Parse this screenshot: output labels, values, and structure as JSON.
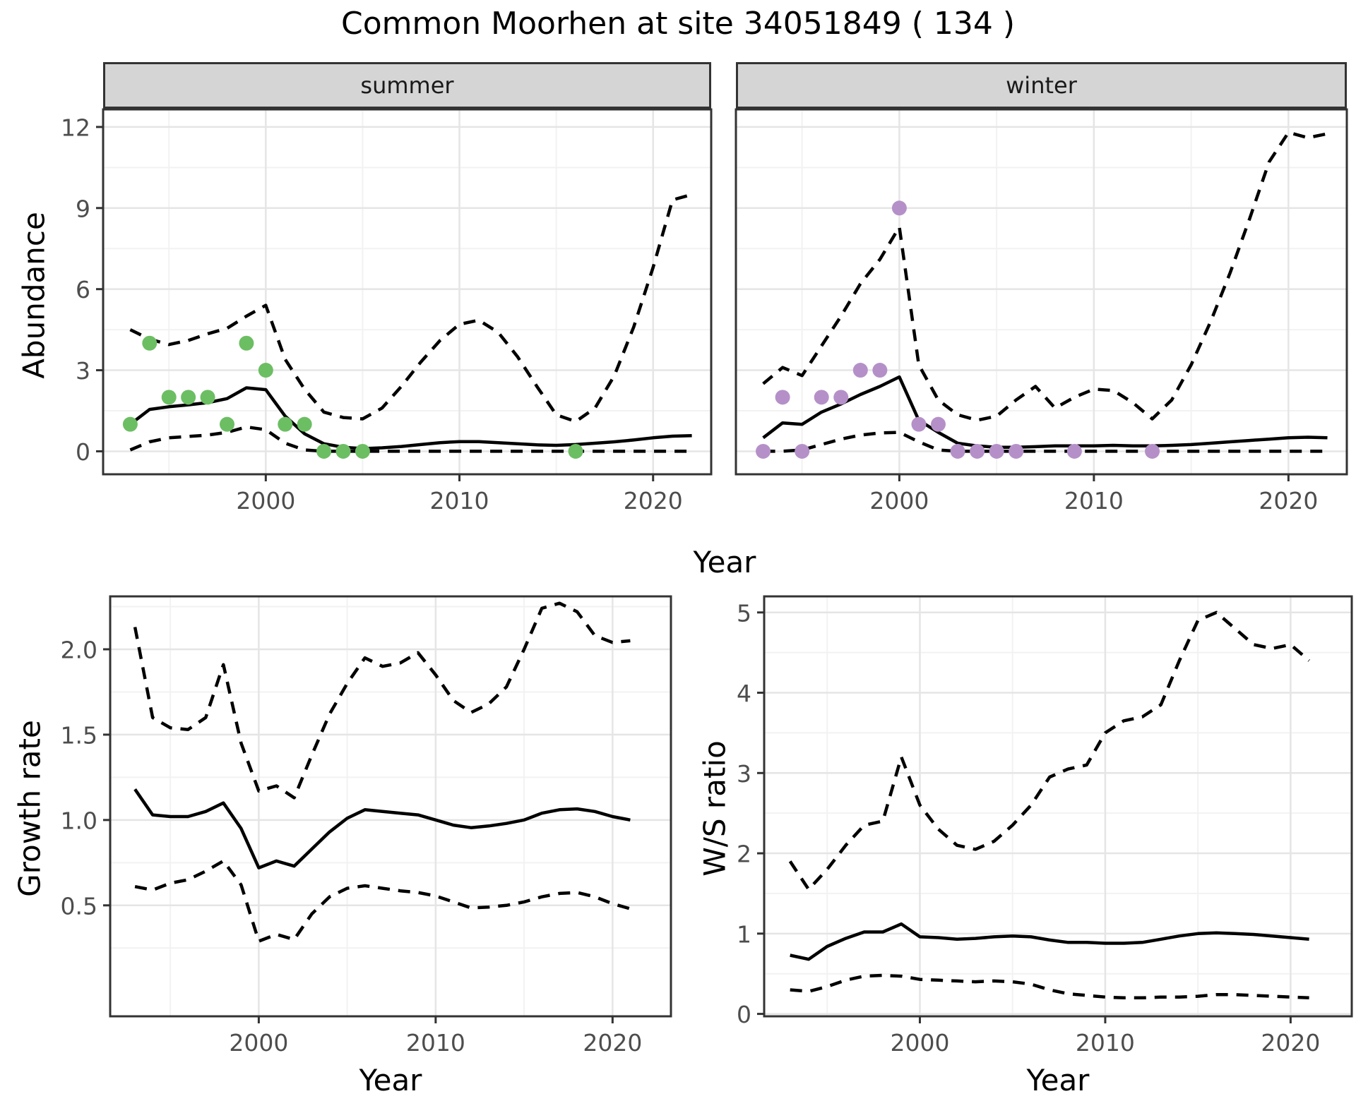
{
  "title": "Common Moorhen at site 34051849 ( 134 )",
  "axis_labels": {
    "abundance": "Abundance",
    "year": "Year",
    "growth_rate": "Growth rate",
    "ws_ratio": "W/S ratio"
  },
  "colors": {
    "summer_points": "#6cbe63",
    "winter_points": "#b590c8",
    "line": "#000000",
    "grid_major": "#e5e5e5",
    "grid_minor": "#f2f2f2",
    "panel_border": "#333333",
    "strip_bg": "#d5d5d5",
    "tick_text": "#4d4d4d"
  },
  "chart_data": [
    {
      "id": "abundance-summer",
      "type": "line",
      "facet_label": "summer",
      "xlabel": "Year",
      "ylabel": "Abundance",
      "xlim": [
        1991.6,
        2023.0
      ],
      "ylim": [
        -0.85,
        12.65
      ],
      "xticks": [
        2000,
        2010,
        2020
      ],
      "xticklabels": [
        "2000",
        "2010",
        "2020"
      ],
      "xminor": [
        1995,
        2005,
        2015
      ],
      "yticks": [
        0,
        3,
        6,
        9,
        12
      ],
      "yticklabels": [
        "0",
        "3",
        "6",
        "9",
        "12"
      ],
      "yminor": [
        1.5,
        4.5,
        7.5,
        10.5
      ],
      "show_yticks": true,
      "series": [
        {
          "name": "upper-credible",
          "style": "dashed",
          "x": [
            1993,
            1994,
            1995,
            1996,
            1997,
            1998,
            1999,
            2000,
            2001,
            2002,
            2003,
            2004,
            2005,
            2006,
            2007,
            2008,
            2009,
            2010,
            2011,
            2012,
            2013,
            2014,
            2015,
            2016,
            2017,
            2018,
            2019,
            2020,
            2021,
            2022
          ],
          "y": [
            4.5,
            4.15,
            3.95,
            4.1,
            4.35,
            4.55,
            5.0,
            5.4,
            3.4,
            2.3,
            1.45,
            1.25,
            1.2,
            1.6,
            2.4,
            3.3,
            4.1,
            4.7,
            4.85,
            4.4,
            3.5,
            2.4,
            1.35,
            1.1,
            1.6,
            2.8,
            4.6,
            6.8,
            9.3,
            9.5
          ]
        },
        {
          "name": "lower-credible",
          "style": "dashed",
          "x": [
            1993,
            1994,
            1995,
            1996,
            1997,
            1998,
            1999,
            2000,
            2001,
            2002,
            2003,
            2004,
            2005,
            2006,
            2007,
            2008,
            2009,
            2010,
            2011,
            2012,
            2013,
            2014,
            2015,
            2016,
            2017,
            2018,
            2019,
            2020,
            2021,
            2022
          ],
          "y": [
            0.05,
            0.35,
            0.5,
            0.55,
            0.6,
            0.7,
            0.9,
            0.8,
            0.3,
            0.05,
            0,
            0,
            0,
            0,
            0,
            0,
            0,
            0,
            0,
            0,
            0,
            0,
            0,
            0,
            0,
            0,
            0,
            0,
            0,
            0
          ]
        },
        {
          "name": "estimate",
          "style": "solid",
          "x": [
            1993,
            1994,
            1995,
            1996,
            1997,
            1998,
            1999,
            2000,
            2001,
            2002,
            2003,
            2004,
            2005,
            2006,
            2007,
            2008,
            2009,
            2010,
            2011,
            2012,
            2013,
            2014,
            2015,
            2016,
            2017,
            2018,
            2019,
            2020,
            2021,
            2022
          ],
          "y": [
            1.0,
            1.55,
            1.65,
            1.72,
            1.8,
            1.95,
            2.35,
            2.28,
            1.3,
            0.65,
            0.28,
            0.15,
            0.1,
            0.13,
            0.18,
            0.25,
            0.32,
            0.36,
            0.36,
            0.32,
            0.28,
            0.24,
            0.22,
            0.25,
            0.3,
            0.35,
            0.42,
            0.5,
            0.56,
            0.58
          ]
        },
        {
          "name": "observed-counts",
          "style": "points",
          "color": "#6cbe63",
          "x": [
            1993,
            1994,
            1995,
            1996,
            1997,
            1998,
            1999,
            2000,
            2001,
            2002,
            2003,
            2004,
            2005,
            2016
          ],
          "y": [
            1,
            4,
            2,
            2,
            2,
            1,
            4,
            3,
            1,
            1,
            0,
            0,
            0,
            0
          ]
        }
      ]
    },
    {
      "id": "abundance-winter",
      "type": "line",
      "facet_label": "winter",
      "xlabel": "Year",
      "ylabel": "Abundance",
      "xlim": [
        1991.6,
        2023.0
      ],
      "ylim": [
        -0.85,
        12.65
      ],
      "xticks": [
        2000,
        2010,
        2020
      ],
      "xticklabels": [
        "2000",
        "2010",
        "2020"
      ],
      "xminor": [
        1995,
        2005,
        2015
      ],
      "yticks": [
        0,
        3,
        6,
        9,
        12
      ],
      "yticklabels": [
        "0",
        "3",
        "6",
        "9",
        "12"
      ],
      "yminor": [
        1.5,
        4.5,
        7.5,
        10.5
      ],
      "show_yticks": false,
      "series": [
        {
          "name": "upper-credible",
          "style": "dashed",
          "x": [
            1993,
            1994,
            1995,
            1996,
            1997,
            1998,
            1999,
            2000,
            2001,
            2002,
            2003,
            2004,
            2005,
            2006,
            2007,
            2008,
            2009,
            2010,
            2011,
            2012,
            2013,
            2014,
            2015,
            2016,
            2017,
            2018,
            2019,
            2020,
            2021,
            2022
          ],
          "y": [
            2.5,
            3.1,
            2.8,
            3.9,
            5.0,
            6.2,
            7.1,
            8.3,
            3.2,
            1.9,
            1.35,
            1.15,
            1.3,
            1.9,
            2.4,
            1.6,
            2.0,
            2.3,
            2.25,
            1.8,
            1.2,
            1.9,
            3.2,
            4.8,
            6.6,
            8.6,
            10.7,
            11.8,
            11.6,
            11.75
          ]
        },
        {
          "name": "lower-credible",
          "style": "dashed",
          "x": [
            1993,
            1994,
            1995,
            1996,
            1997,
            1998,
            1999,
            2000,
            2001,
            2002,
            2003,
            2004,
            2005,
            2006,
            2007,
            2008,
            2009,
            2010,
            2011,
            2012,
            2013,
            2014,
            2015,
            2016,
            2017,
            2018,
            2019,
            2020,
            2021,
            2022
          ],
          "y": [
            0,
            0,
            0.05,
            0.25,
            0.45,
            0.6,
            0.68,
            0.7,
            0.35,
            0.05,
            0,
            0,
            0,
            0,
            0,
            0,
            0,
            0,
            0,
            0,
            0,
            0,
            0,
            0,
            0,
            0,
            0,
            0,
            0,
            0
          ]
        },
        {
          "name": "estimate",
          "style": "solid",
          "x": [
            1993,
            1994,
            1995,
            1996,
            1997,
            1998,
            1999,
            2000,
            2001,
            2002,
            2003,
            2004,
            2005,
            2006,
            2007,
            2008,
            2009,
            2010,
            2011,
            2012,
            2013,
            2014,
            2015,
            2016,
            2017,
            2018,
            2019,
            2020,
            2021,
            2022
          ],
          "y": [
            0.5,
            1.05,
            1.0,
            1.45,
            1.75,
            2.1,
            2.4,
            2.75,
            1.15,
            0.7,
            0.3,
            0.2,
            0.15,
            0.15,
            0.17,
            0.2,
            0.2,
            0.2,
            0.22,
            0.2,
            0.2,
            0.22,
            0.25,
            0.3,
            0.35,
            0.4,
            0.45,
            0.5,
            0.52,
            0.5
          ]
        },
        {
          "name": "observed-counts",
          "style": "points",
          "color": "#b590c8",
          "x": [
            1993,
            1994,
            1995,
            1996,
            1997,
            1998,
            1999,
            2000,
            2001,
            2002,
            2003,
            2004,
            2005,
            2006,
            2009,
            2013
          ],
          "y": [
            0,
            2,
            0,
            2,
            2,
            3,
            3,
            9,
            1,
            1,
            0,
            0,
            0,
            0,
            0,
            0
          ]
        }
      ]
    },
    {
      "id": "growth-rate",
      "type": "line",
      "facet_label": "",
      "xlabel": "Year",
      "ylabel": "Growth rate",
      "xlim": [
        1991.6,
        2023.3
      ],
      "ylim": [
        -0.15,
        2.31
      ],
      "xticks": [
        2000,
        2010,
        2020
      ],
      "xticklabels": [
        "2000",
        "2010",
        "2020"
      ],
      "xminor": [
        1995,
        2005,
        2015
      ],
      "yticks": [
        0.5,
        1.0,
        1.5,
        2.0
      ],
      "yticklabels": [
        "0.5",
        "1.0",
        "1.5",
        "2.0"
      ],
      "yminor": [
        0.25,
        0.75,
        1.25,
        1.75,
        2.25
      ],
      "show_yticks": true,
      "series": [
        {
          "name": "upper-credible",
          "style": "dashed",
          "x": [
            1993,
            1994,
            1995,
            1996,
            1997,
            1998,
            1999,
            2000,
            2001,
            2002,
            2003,
            2004,
            2005,
            2006,
            2007,
            2008,
            2009,
            2010,
            2011,
            2012,
            2013,
            2014,
            2015,
            2016,
            2017,
            2018,
            2019,
            2020,
            2021
          ],
          "y": [
            2.13,
            1.6,
            1.54,
            1.53,
            1.6,
            1.91,
            1.45,
            1.17,
            1.2,
            1.13,
            1.38,
            1.62,
            1.8,
            1.95,
            1.9,
            1.92,
            1.98,
            1.85,
            1.7,
            1.63,
            1.68,
            1.78,
            2.0,
            2.24,
            2.27,
            2.22,
            2.08,
            2.04,
            2.05
          ]
        },
        {
          "name": "lower-credible",
          "style": "dashed",
          "x": [
            1993,
            1994,
            1995,
            1996,
            1997,
            1998,
            1999,
            2000,
            2001,
            2002,
            2003,
            2004,
            2005,
            2006,
            2007,
            2008,
            2009,
            2010,
            2011,
            2012,
            2013,
            2014,
            2015,
            2016,
            2017,
            2018,
            2019,
            2020,
            2021
          ],
          "y": [
            0.61,
            0.59,
            0.63,
            0.65,
            0.7,
            0.76,
            0.62,
            0.29,
            0.33,
            0.3,
            0.45,
            0.55,
            0.6,
            0.615,
            0.6,
            0.585,
            0.575,
            0.555,
            0.52,
            0.485,
            0.49,
            0.5,
            0.52,
            0.55,
            0.57,
            0.575,
            0.55,
            0.51,
            0.48
          ]
        },
        {
          "name": "estimate",
          "style": "solid",
          "x": [
            1993,
            1994,
            1995,
            1996,
            1997,
            1998,
            1999,
            2000,
            2001,
            2002,
            2003,
            2004,
            2005,
            2006,
            2007,
            2008,
            2009,
            2010,
            2011,
            2012,
            2013,
            2014,
            2015,
            2016,
            2017,
            2018,
            2019,
            2020,
            2021
          ],
          "y": [
            1.18,
            1.03,
            1.02,
            1.02,
            1.05,
            1.1,
            0.95,
            0.72,
            0.76,
            0.73,
            0.83,
            0.93,
            1.01,
            1.06,
            1.05,
            1.04,
            1.03,
            1.0,
            0.97,
            0.955,
            0.965,
            0.98,
            1.0,
            1.04,
            1.06,
            1.065,
            1.05,
            1.02,
            1.0
          ]
        }
      ]
    },
    {
      "id": "ws-ratio",
      "type": "line",
      "facet_label": "",
      "xlabel": "Year",
      "ylabel": "W/S ratio",
      "xlim": [
        1991.6,
        2023.3
      ],
      "ylim": [
        -0.03,
        5.2
      ],
      "xticks": [
        2000,
        2010,
        2020
      ],
      "xticklabels": [
        "2000",
        "2010",
        "2020"
      ],
      "xminor": [
        1995,
        2005,
        2015
      ],
      "yticks": [
        0,
        1,
        2,
        3,
        4,
        5
      ],
      "yticklabels": [
        "0",
        "1",
        "2",
        "3",
        "4",
        "5"
      ],
      "yminor": [
        0.5,
        1.5,
        2.5,
        3.5,
        4.5
      ],
      "show_yticks": true,
      "series": [
        {
          "name": "upper-credible",
          "style": "dashed",
          "x": [
            1993,
            1994,
            1995,
            1996,
            1997,
            1998,
            1999,
            2000,
            2001,
            2002,
            2003,
            2004,
            2005,
            2006,
            2007,
            2008,
            2009,
            2010,
            2011,
            2012,
            2013,
            2014,
            2015,
            2016,
            2017,
            2018,
            2019,
            2020,
            2021
          ],
          "y": [
            1.9,
            1.55,
            1.8,
            2.1,
            2.35,
            2.4,
            3.2,
            2.6,
            2.3,
            2.1,
            2.05,
            2.15,
            2.35,
            2.6,
            2.95,
            3.05,
            3.1,
            3.5,
            3.65,
            3.7,
            3.85,
            4.4,
            4.9,
            5.0,
            4.8,
            4.6,
            4.55,
            4.6,
            4.4
          ]
        },
        {
          "name": "lower-credible",
          "style": "dashed",
          "x": [
            1993,
            1994,
            1995,
            1996,
            1997,
            1998,
            1999,
            2000,
            2001,
            2002,
            2003,
            2004,
            2005,
            2006,
            2007,
            2008,
            2009,
            2010,
            2011,
            2012,
            2013,
            2014,
            2015,
            2016,
            2017,
            2018,
            2019,
            2020,
            2021
          ],
          "y": [
            0.3,
            0.28,
            0.34,
            0.42,
            0.47,
            0.48,
            0.47,
            0.43,
            0.42,
            0.41,
            0.4,
            0.41,
            0.4,
            0.37,
            0.3,
            0.25,
            0.23,
            0.21,
            0.2,
            0.2,
            0.21,
            0.21,
            0.22,
            0.24,
            0.24,
            0.23,
            0.22,
            0.21,
            0.2
          ]
        },
        {
          "name": "estimate",
          "style": "solid",
          "x": [
            1993,
            1994,
            1995,
            1996,
            1997,
            1998,
            1999,
            2000,
            2001,
            2002,
            2003,
            2004,
            2005,
            2006,
            2007,
            2008,
            2009,
            2010,
            2011,
            2012,
            2013,
            2014,
            2015,
            2016,
            2017,
            2018,
            2019,
            2020,
            2021
          ],
          "y": [
            0.73,
            0.68,
            0.84,
            0.94,
            1.02,
            1.02,
            1.12,
            0.96,
            0.95,
            0.93,
            0.94,
            0.96,
            0.97,
            0.96,
            0.92,
            0.89,
            0.89,
            0.88,
            0.88,
            0.89,
            0.93,
            0.97,
            1.0,
            1.01,
            1.0,
            0.99,
            0.97,
            0.95,
            0.93
          ]
        }
      ]
    }
  ]
}
